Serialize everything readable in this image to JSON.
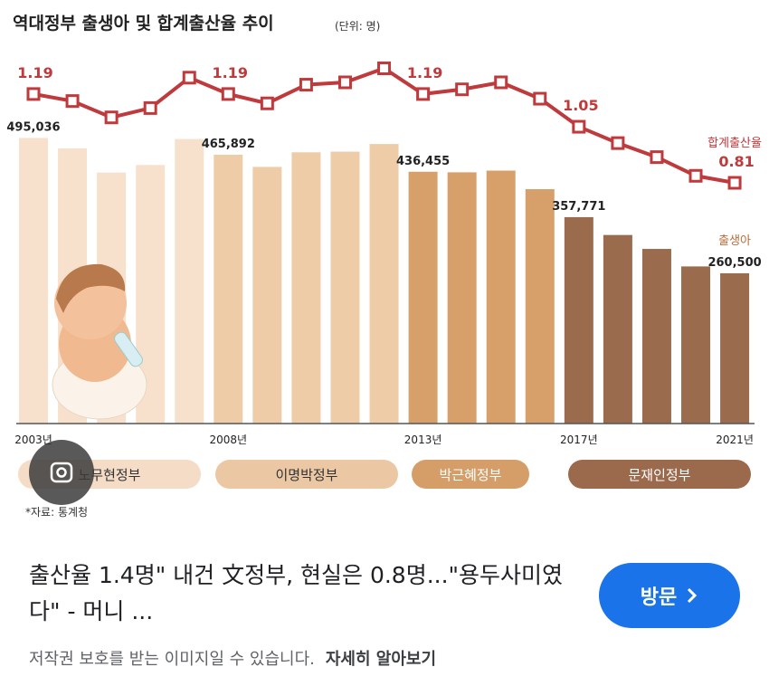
{
  "chart_data": {
    "type": "bar-line",
    "title": "역대정부 출생아 및 합계출산율 추이",
    "subtitle": "(단위: 명)",
    "source": "*자료: 통계청",
    "categories": [
      "2003년",
      null,
      null,
      null,
      null,
      "2008년",
      null,
      null,
      null,
      null,
      "2013년",
      null,
      null,
      null,
      "2017년",
      null,
      null,
      null,
      "2021년"
    ],
    "series": [
      {
        "name": "출생아",
        "type": "bar",
        "color": "#9a6b4d",
        "values": [
          495036,
          476958,
          435031,
          448153,
          493189,
          465892,
          444849,
          470171,
          471265,
          484550,
          436455,
          435435,
          438420,
          406243,
          357771,
          326822,
          302676,
          272337,
          260500
        ],
        "value_labels": [
          "495,036",
          null,
          null,
          null,
          null,
          "465,892",
          null,
          null,
          null,
          null,
          "436,455",
          null,
          null,
          null,
          "357,771",
          null,
          null,
          null,
          "260,500"
        ],
        "bar_colors": [
          "#f7e1cd",
          "#f7e1cd",
          "#f7e1cd",
          "#f7e1cd",
          "#f7e1cd",
          "#efcca8",
          "#efcca8",
          "#efcca8",
          "#efcca8",
          "#efcca8",
          "#d7a06b",
          "#d7a06b",
          "#d7a06b",
          "#d7a06b",
          "#9a6b4d",
          "#9a6b4d",
          "#9a6b4d",
          "#9a6b4d",
          "#9a6b4d"
        ]
      },
      {
        "name": "합계출산율",
        "type": "line",
        "axis": "y2",
        "color": "#bf3a3c",
        "values": [
          1.19,
          1.16,
          1.09,
          1.13,
          1.26,
          1.19,
          1.15,
          1.23,
          1.24,
          1.3,
          1.19,
          1.21,
          1.24,
          1.17,
          1.05,
          0.98,
          0.92,
          0.84,
          0.81
        ],
        "value_labels": [
          "1.19",
          null,
          null,
          null,
          null,
          "1.19",
          null,
          null,
          null,
          null,
          "1.19",
          null,
          null,
          null,
          "1.05",
          null,
          null,
          null,
          "0.81"
        ]
      }
    ],
    "ylim": [
      0,
      640000
    ],
    "y2lim": [
      -0.22,
      1.36
    ],
    "eras": [
      {
        "label": "노무현정부",
        "color": "#f5dcc6",
        "text_color": "#333333"
      },
      {
        "label": "이명박정부",
        "color": "#ebc8a3",
        "text_color": "#333333"
      },
      {
        "label": "박근혜정부",
        "color": "#d59d68",
        "text_color": "#ffffff"
      },
      {
        "label": "문재인정부",
        "color": "#9b6a4d",
        "text_color": "#ffffff"
      }
    ]
  },
  "card": {
    "headline": "출산율 1.4명\" 내건 文정부, 현실은 0.8명...\"용두사미였다\" - 머니 ...",
    "button": "방문",
    "notice": "저작권 보호를 받는 이미지일 수 있습니다.",
    "learn_more": "자세히 알아보기"
  }
}
